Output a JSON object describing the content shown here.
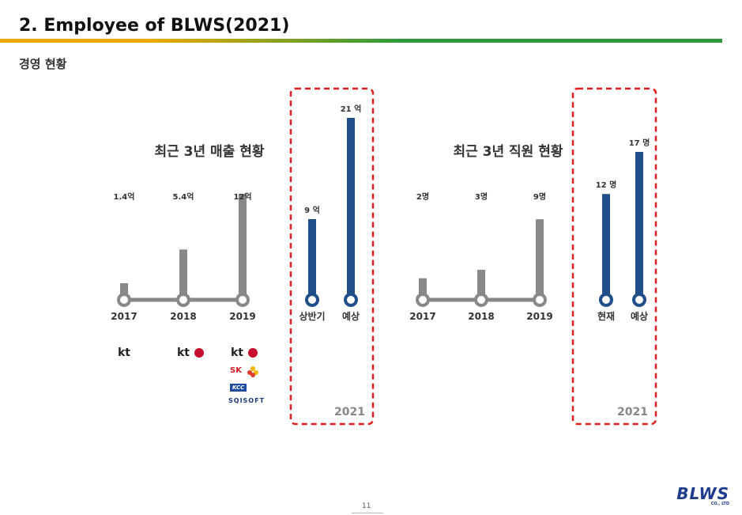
{
  "header": {
    "title": "2. Employee of BLWS(2021)",
    "subtitle": "경영 현황"
  },
  "colors": {
    "past_bar": "#888888",
    "current_bar": "#1f4e89",
    "highlight_border": "#e02020",
    "rule_orange": "#f2a900",
    "rule_green": "#2f9a3a"
  },
  "chart_data": [
    {
      "type": "bar",
      "title": "최근 3년 매출 현황",
      "categories": [
        "2017",
        "2018",
        "2019",
        "상반기",
        "예상"
      ],
      "values": [
        1.4,
        5.4,
        12,
        9,
        21
      ],
      "value_labels": [
        "1.4억",
        "5.4억",
        "12억",
        "9 억",
        "21 억"
      ],
      "unit": "억",
      "highlight_group": {
        "label": "2021",
        "categories": [
          "상반기",
          "예상"
        ]
      }
    },
    {
      "type": "bar",
      "title": "최근 3년 직원 현황",
      "categories": [
        "2017",
        "2018",
        "2019",
        "현재",
        "예상"
      ],
      "values": [
        2,
        3,
        9,
        12,
        17
      ],
      "value_labels": [
        "2명",
        "3명",
        "9명",
        "12 명",
        "17 명"
      ],
      "unit": "명",
      "highlight_group": {
        "label": "2021",
        "categories": [
          "현재",
          "예상"
        ]
      }
    }
  ],
  "clients": {
    "2017": [
      "kt"
    ],
    "2018": [
      "kt",
      "LG"
    ],
    "2019": [
      "kt",
      "LG",
      "SK",
      "KCC",
      "SQISOFT"
    ]
  },
  "footer": {
    "page_number": "11",
    "brand": "BLWS",
    "brand_sub": "CO., LTD"
  }
}
